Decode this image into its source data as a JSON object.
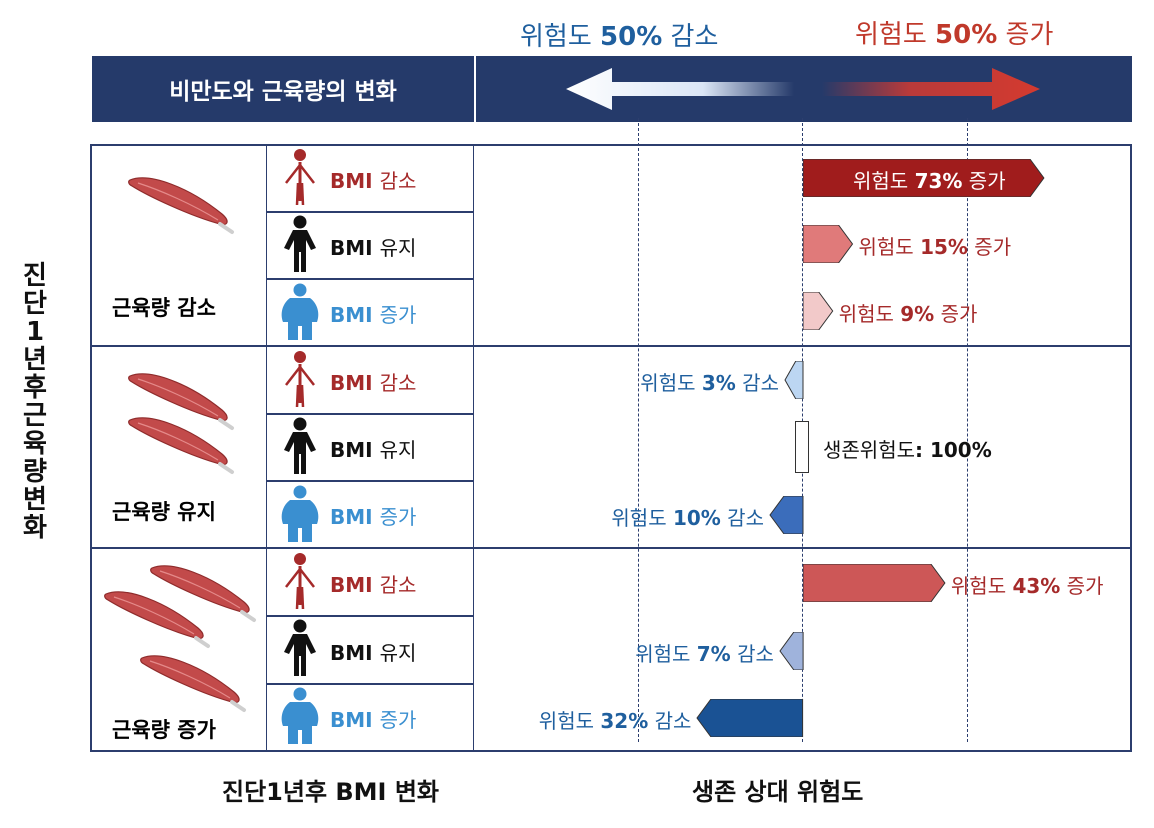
{
  "header": {
    "decrease": {
      "prefix": "위험도 ",
      "num": "50%",
      "suffix": " 감소"
    },
    "increase": {
      "prefix": "위험도 ",
      "num": "50%",
      "suffix": " 증가"
    },
    "band_title": "비만도와 근육량의 변화"
  },
  "y_axis_title": [
    "진",
    "단",
    "1",
    "년",
    "후",
    "근",
    "육",
    "량",
    "변",
    "화"
  ],
  "x_axis_left_title": "진단1년후 BMI 변화",
  "x_axis_right_title": "생존 상대 위험도",
  "muscle_groups": [
    {
      "label": "근육량 감소",
      "color": "#a52a2a"
    },
    {
      "label": "근육량 유지",
      "color": "#111111"
    },
    {
      "label": "근육량 증가",
      "color": "#3a8fd0"
    }
  ],
  "bmi_rows": [
    {
      "prefix": "BMI ",
      "word": "감소",
      "color": "#a52a2a",
      "figure": "thin-person-icon"
    },
    {
      "prefix": "BMI ",
      "word": "유지",
      "color": "#111111",
      "figure": "normal-person-icon"
    },
    {
      "prefix": "BMI ",
      "word": "증가",
      "color": "#3a8fd0",
      "figure": "heavy-person-icon"
    }
  ],
  "chart_data": {
    "type": "bar",
    "reference_label": {
      "prefix": "생존위험도",
      "num": ": 100%"
    },
    "items": [
      {
        "muscle": "근육량 감소",
        "bmi": "BMI 감소",
        "value": 73,
        "direction": "증가",
        "color": "#a01c1c",
        "text_color": "#ffffff",
        "label_inside": true
      },
      {
        "muscle": "근육량 감소",
        "bmi": "BMI 유지",
        "value": 15,
        "direction": "증가",
        "color": "#e07a7a",
        "text_color": "#a52a2a",
        "label_inside": false
      },
      {
        "muscle": "근육량 감소",
        "bmi": "BMI 증가",
        "value": 9,
        "direction": "증가",
        "color": "#f2c9c9",
        "text_color": "#a52a2a",
        "label_inside": false
      },
      {
        "muscle": "근육량 유지",
        "bmi": "BMI 감소",
        "value": 3,
        "direction": "감소",
        "color": "#bcd6f2",
        "text_color": "#1f5f9e",
        "label_inside": false
      },
      {
        "muscle": "근육량 유지",
        "bmi": "BMI 유지",
        "value": 0,
        "direction": "reference",
        "color": "#ffffff",
        "text_color": "#111111",
        "label_inside": false
      },
      {
        "muscle": "근육량 유지",
        "bmi": "BMI 증가",
        "value": 10,
        "direction": "감소",
        "color": "#3b6dbb",
        "text_color": "#1f5f9e",
        "label_inside": false
      },
      {
        "muscle": "근육량 증가",
        "bmi": "BMI 감소",
        "value": 43,
        "direction": "증가",
        "color": "#cd5757",
        "text_color": "#a52a2a",
        "label_inside": false
      },
      {
        "muscle": "근육량 증가",
        "bmi": "BMI 유지",
        "value": 7,
        "direction": "감소",
        "color": "#9fb3dc",
        "text_color": "#1f5f9e",
        "label_inside": false
      },
      {
        "muscle": "근육량 증가",
        "bmi": "BMI 증가",
        "value": 32,
        "direction": "감소",
        "color": "#1a5294",
        "text_color": "#1f5f9e",
        "label_inside": false
      }
    ],
    "label_prefix": "위험도 ",
    "reference_lines": [
      -50,
      0,
      50
    ],
    "xlim": [
      -100,
      100
    ]
  },
  "colors": {
    "navy": "#253a6a",
    "grid": "#2c3e6e",
    "red": "#c0392b",
    "blue": "#1f5f9e",
    "muscle": "#c24a4a"
  }
}
